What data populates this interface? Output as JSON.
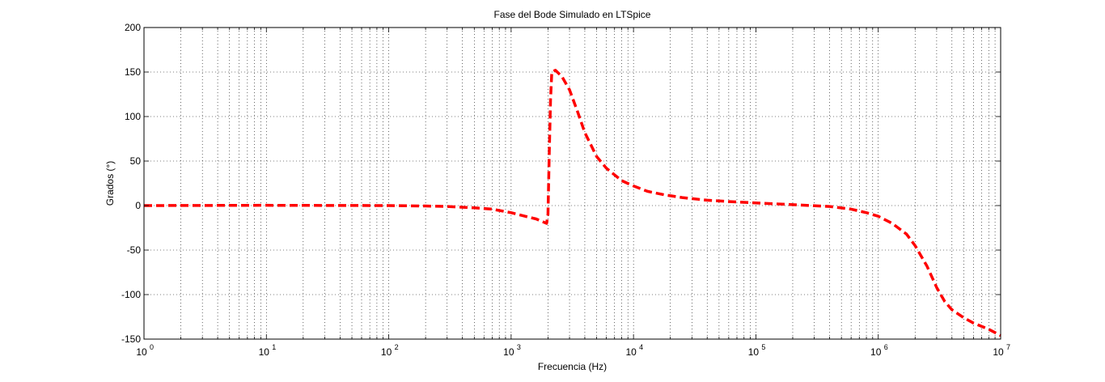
{
  "chart_data": {
    "type": "line",
    "title": "Fase del Bode Simulado en LTSpice",
    "xlabel": "Frecuencia (Hz)",
    "ylabel": "Grados (°)",
    "xscale": "log",
    "xlim": [
      1,
      10000000
    ],
    "ylim": [
      -150,
      200
    ],
    "grid": true,
    "grid_style": "dotted",
    "legend": "none",
    "x_ticks": [
      {
        "base": "10",
        "exp": "0",
        "value": 1
      },
      {
        "base": "10",
        "exp": "1",
        "value": 10
      },
      {
        "base": "10",
        "exp": "2",
        "value": 100
      },
      {
        "base": "10",
        "exp": "3",
        "value": 1000
      },
      {
        "base": "10",
        "exp": "4",
        "value": 10000
      },
      {
        "base": "10",
        "exp": "5",
        "value": 100000
      },
      {
        "base": "10",
        "exp": "6",
        "value": 1000000
      },
      {
        "base": "10",
        "exp": "7",
        "value": 10000000
      }
    ],
    "y_ticks": [
      {
        "label": "200",
        "value": 200
      },
      {
        "label": "150",
        "value": 150
      },
      {
        "label": "100",
        "value": 100
      },
      {
        "label": "50",
        "value": 50
      },
      {
        "label": "0",
        "value": 0
      },
      {
        "label": "-50",
        "value": -50
      },
      {
        "label": "-100",
        "value": -100
      },
      {
        "label": "-150",
        "value": -150
      }
    ],
    "series": [
      {
        "color": "#ff0000",
        "style": "dashed",
        "points": [
          [
            1,
            0
          ],
          [
            10,
            0.3
          ],
          [
            100,
            0
          ],
          [
            200,
            -0.5
          ],
          [
            300,
            -1
          ],
          [
            500,
            -2.5
          ],
          [
            700,
            -4
          ],
          [
            1000,
            -8
          ],
          [
            1300,
            -12
          ],
          [
            1600,
            -15
          ],
          [
            1800,
            -18
          ],
          [
            1950,
            -20
          ],
          [
            2000,
            -10
          ],
          [
            2050,
            60
          ],
          [
            2100,
            120
          ],
          [
            2150,
            150
          ],
          [
            2300,
            152
          ],
          [
            2600,
            145
          ],
          [
            3000,
            130
          ],
          [
            3500,
            105
          ],
          [
            4000,
            82
          ],
          [
            5000,
            55
          ],
          [
            6000,
            42
          ],
          [
            8000,
            28
          ],
          [
            10000,
            22
          ],
          [
            13000,
            16
          ],
          [
            18000,
            12
          ],
          [
            25000,
            9
          ],
          [
            40000,
            6
          ],
          [
            70000,
            4
          ],
          [
            100000,
            3
          ],
          [
            200000,
            1
          ],
          [
            400000,
            -1
          ],
          [
            600000,
            -4
          ],
          [
            800000,
            -8
          ],
          [
            1000000,
            -12
          ],
          [
            1300000,
            -20
          ],
          [
            1700000,
            -32
          ],
          [
            2000000,
            -45
          ],
          [
            2500000,
            -68
          ],
          [
            3000000,
            -92
          ],
          [
            3500000,
            -108
          ],
          [
            4000000,
            -117
          ],
          [
            5000000,
            -126
          ],
          [
            6000000,
            -132
          ],
          [
            8000000,
            -139
          ],
          [
            10000000,
            -146
          ]
        ]
      }
    ]
  }
}
